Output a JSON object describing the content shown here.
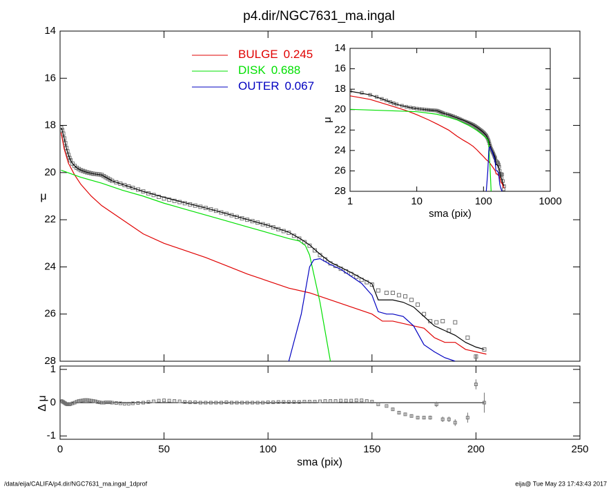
{
  "chart_data": [
    {
      "type": "line",
      "title": "p4.dir/NGC7631_ma.ingal",
      "ylabel": "μ",
      "xlim": [
        0,
        250
      ],
      "xticks": [
        0,
        50,
        100,
        150,
        200,
        250
      ],
      "ylim": [
        28,
        14
      ],
      "yticks": [
        14,
        16,
        18,
        20,
        22,
        24,
        26,
        28
      ],
      "series": [
        {
          "color": "#707070",
          "marker": "square",
          "x": [
            0.5,
            1,
            1.5,
            2,
            2.5,
            3,
            3.5,
            4,
            4.5,
            5,
            6,
            7,
            8,
            9,
            10,
            11,
            12,
            13,
            14,
            15,
            16,
            17,
            18,
            19,
            20,
            21,
            22,
            23,
            24,
            25,
            27,
            29,
            31,
            33,
            35,
            37.5,
            40,
            42.5,
            45,
            47.5,
            50,
            52.5,
            55,
            57.5,
            60,
            62.5,
            65,
            67.5,
            70,
            72.5,
            75,
            77.5,
            80,
            82.5,
            85,
            87.5,
            90,
            92.5,
            95,
            97.5,
            100,
            102.5,
            105,
            107.5,
            110,
            112.5,
            115,
            117.5,
            120,
            122.5,
            125,
            127.5,
            130,
            132.5,
            135,
            137.5,
            140,
            142.5,
            145,
            147.5,
            150,
            153,
            157,
            160,
            163,
            166,
            169,
            172,
            175,
            178,
            181,
            184,
            187,
            190,
            196,
            200,
            204
          ],
          "values": [
            18.1,
            18.2,
            18.35,
            18.55,
            18.75,
            18.95,
            19.1,
            19.25,
            19.38,
            19.48,
            19.62,
            19.72,
            19.8,
            19.85,
            19.9,
            19.93,
            19.96,
            19.99,
            20.01,
            20.03,
            20.05,
            20.06,
            20.07,
            20.08,
            20.1,
            20.15,
            20.2,
            20.25,
            20.3,
            20.35,
            20.41,
            20.47,
            20.53,
            20.59,
            20.65,
            20.72,
            20.8,
            20.88,
            20.95,
            21.03,
            21.1,
            21.15,
            21.2,
            21.25,
            21.3,
            21.35,
            21.4,
            21.45,
            21.5,
            21.56,
            21.62,
            21.69,
            21.75,
            21.81,
            21.88,
            21.94,
            22.0,
            22.06,
            22.12,
            22.19,
            22.25,
            22.32,
            22.4,
            22.48,
            22.55,
            22.68,
            22.8,
            22.95,
            23.1,
            23.3,
            23.5,
            23.68,
            23.85,
            23.96,
            24.08,
            24.19,
            24.3,
            24.42,
            24.55,
            24.65,
            24.75,
            25.0,
            25.1,
            25.1,
            25.2,
            25.25,
            25.4,
            25.6,
            26.0,
            26.3,
            26.35,
            26.3,
            26.7,
            26.35,
            27.0,
            27.8,
            27.5
          ]
        },
        {
          "color": "#000000",
          "x": [
            0.5,
            1,
            2,
            3,
            4,
            5,
            6,
            8,
            10,
            13,
            16,
            20,
            25,
            30,
            40,
            50,
            60,
            70,
            80,
            90,
            100,
            110,
            116,
            120,
            125,
            130,
            140,
            150,
            153,
            160,
            165,
            170,
            175,
            180,
            185,
            190,
            195,
            200,
            204
          ],
          "values": [
            18.1,
            18.2,
            18.55,
            18.95,
            19.25,
            19.48,
            19.62,
            19.8,
            19.9,
            19.99,
            20.05,
            20.1,
            20.35,
            20.5,
            20.8,
            21.05,
            21.28,
            21.5,
            21.74,
            21.99,
            22.24,
            22.53,
            22.83,
            23.07,
            23.46,
            23.8,
            24.24,
            24.72,
            25.4,
            25.4,
            25.5,
            25.7,
            26.1,
            26.5,
            26.7,
            26.9,
            27.2,
            27.4,
            27.5
          ]
        },
        {
          "name": "BULGE",
          "fraction": 0.245,
          "color": "#e00000",
          "x": [
            0.5,
            2,
            4,
            7,
            10,
            15,
            20,
            30,
            40,
            50,
            60,
            70,
            80,
            90,
            100,
            110,
            120,
            130,
            140,
            150,
            155,
            160,
            170,
            175,
            180,
            185,
            190,
            195,
            205
          ],
          "values": [
            18.3,
            19.0,
            19.6,
            20.1,
            20.5,
            21.0,
            21.4,
            22.0,
            22.6,
            23.0,
            23.3,
            23.6,
            23.95,
            24.3,
            24.6,
            24.9,
            25.1,
            25.4,
            25.7,
            26.0,
            26.3,
            26.3,
            26.5,
            26.6,
            27.0,
            27.2,
            27.2,
            27.5,
            27.7
          ]
        },
        {
          "name": "DISK",
          "fraction": 0.688,
          "color": "#00e000",
          "x": [
            0.5,
            10,
            20,
            30,
            40,
            50,
            60,
            70,
            80,
            90,
            100,
            110,
            115,
            118,
            120,
            122,
            125,
            128,
            130
          ],
          "values": [
            19.9,
            20.2,
            20.45,
            20.75,
            21.0,
            21.3,
            21.55,
            21.8,
            22.05,
            22.3,
            22.55,
            22.8,
            22.9,
            23.1,
            23.5,
            24.3,
            25.5,
            27.0,
            28.0
          ]
        },
        {
          "name": "OUTER",
          "fraction": 0.067,
          "color": "#0000c0",
          "x": [
            110,
            113,
            116,
            118,
            120,
            122,
            125,
            130,
            135,
            140,
            145,
            150,
            153,
            157,
            160,
            165,
            170,
            175,
            180,
            185,
            190
          ],
          "values": [
            28.0,
            27.0,
            26.0,
            25.0,
            24.0,
            23.7,
            23.65,
            23.9,
            24.1,
            24.4,
            24.7,
            25.2,
            25.9,
            26.0,
            26.0,
            26.1,
            26.5,
            27.3,
            27.6,
            27.85,
            28.0
          ]
        }
      ]
    },
    {
      "type": "scatter",
      "xlabel": "sma (pix)",
      "ylabel": "Δ μ",
      "ylim": [
        -1.1,
        1.1
      ],
      "yticks": [
        -1,
        0,
        1
      ],
      "series": [
        {
          "color": "#707070",
          "marker": "square",
          "values": [
            0.05,
            0.04,
            0.02,
            0,
            -0.02,
            -0.04,
            -0.05,
            -0.05,
            -0.05,
            -0.04,
            -0.02,
            0,
            0.03,
            0.05,
            0.06,
            0.07,
            0.08,
            0.08,
            0.07,
            0.06,
            0.05,
            0.04,
            0.02,
            0.01,
            0,
            0,
            0.01,
            0.01,
            0.01,
            0,
            -0.01,
            -0.02,
            -0.03,
            -0.03,
            -0.02,
            -0.01,
            0,
            0.02,
            0.04,
            0.06,
            0.07,
            0.06,
            0.05,
            0.04,
            0.02,
            0.01,
            0.01,
            0,
            0,
            0,
            0,
            0,
            0.01,
            0,
            0,
            0,
            0,
            0,
            0,
            0,
            0.01,
            0.01,
            0.02,
            0.02,
            0.02,
            0.02,
            0.02,
            0.03,
            0.03,
            0.03,
            0.04,
            0.05,
            0.05,
            0.05,
            0.06,
            0.06,
            0.06,
            0.07,
            0.07,
            0.05,
            0.03,
            -0.05,
            -0.1,
            -0.2,
            -0.3,
            -0.35,
            -0.4,
            -0.45,
            -0.45,
            -0.45,
            -0.05,
            -0.5,
            -0.5,
            -0.6,
            -0.45,
            0.55,
            0.0
          ],
          "errors": [
            0.01,
            0.01,
            0.01,
            0.01,
            0.01,
            0.01,
            0.01,
            0.01,
            0.01,
            0.01,
            0.01,
            0.01,
            0.01,
            0.01,
            0.01,
            0.01,
            0.01,
            0.01,
            0.01,
            0.01,
            0.01,
            0.01,
            0.01,
            0.01,
            0.01,
            0.01,
            0.01,
            0.01,
            0.01,
            0.01,
            0.01,
            0.01,
            0.01,
            0.01,
            0.01,
            0.01,
            0.01,
            0.01,
            0.01,
            0.01,
            0.01,
            0.01,
            0.01,
            0.01,
            0.01,
            0.01,
            0.01,
            0.01,
            0.01,
            0.01,
            0.01,
            0.01,
            0.01,
            0.01,
            0.01,
            0.01,
            0.01,
            0.01,
            0.01,
            0.01,
            0.01,
            0.01,
            0.01,
            0.01,
            0.01,
            0.01,
            0.01,
            0.01,
            0.01,
            0.01,
            0.01,
            0.01,
            0.01,
            0.01,
            0.01,
            0.01,
            0.01,
            0.01,
            0.01,
            0.01,
            0.01,
            0.02,
            0.02,
            0.03,
            0.03,
            0.03,
            0.04,
            0.04,
            0.05,
            0.06,
            0.08,
            0.08,
            0.08,
            0.1,
            0.15,
            0.15,
            0.3
          ]
        }
      ]
    },
    {
      "type": "line",
      "xlabel": "sma (pix)",
      "ylabel": "μ",
      "xlog": true,
      "xlim": [
        1,
        1000
      ],
      "xticks": [
        1,
        10,
        100,
        1000
      ],
      "ylim": [
        28,
        14
      ],
      "yticks": [
        14,
        16,
        18,
        20,
        22,
        24,
        26,
        28
      ]
    }
  ],
  "footer": {
    "left": "/data/eija/CALIFA/p4.dir/NGC7631_ma.ingal_1dprof",
    "right": "eija@  Tue May 23 17:43:43 2017"
  }
}
